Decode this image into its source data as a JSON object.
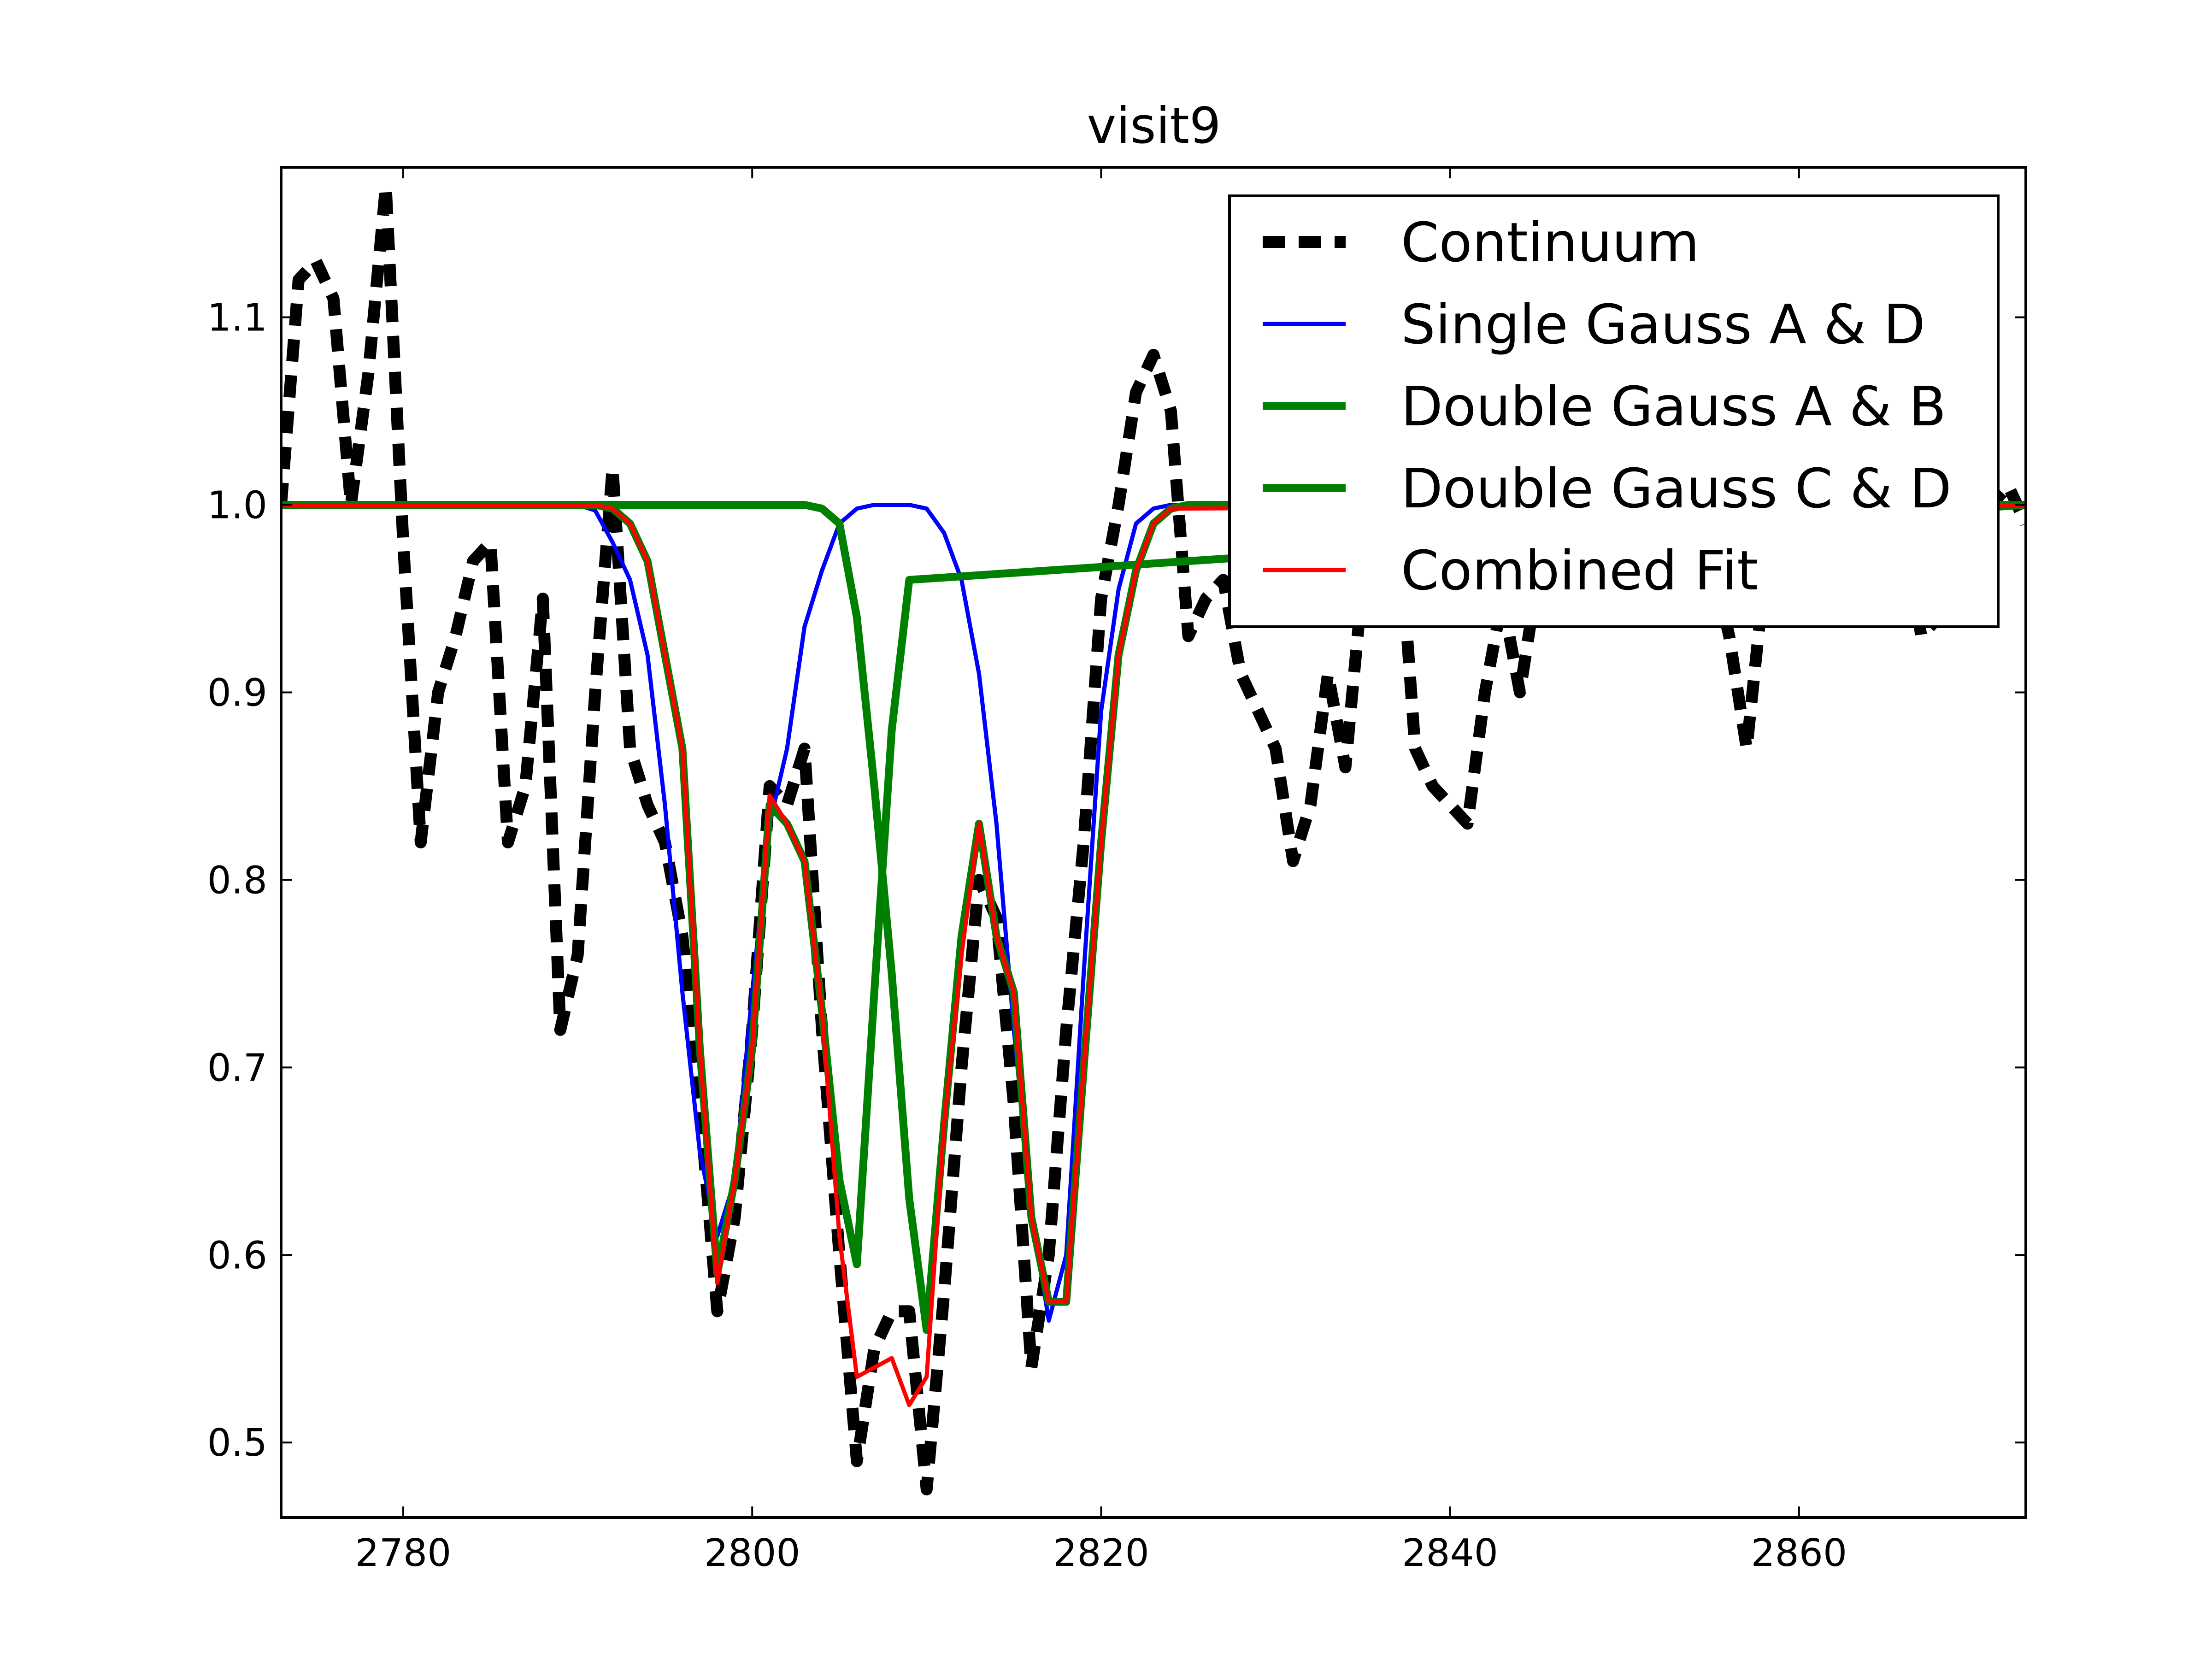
{
  "chart_data": {
    "type": "line",
    "title": "visit9",
    "xlabel": "",
    "ylabel": "",
    "xlim": [
      2773,
      2873
    ],
    "ylim": [
      0.46,
      1.18
    ],
    "xticks": [
      2780,
      2800,
      2820,
      2840,
      2860
    ],
    "yticks": [
      0.5,
      0.6,
      0.7,
      0.8,
      0.9,
      1.0,
      1.1
    ],
    "xtick_labels": [
      "2780",
      "2800",
      "2820",
      "2840",
      "2860"
    ],
    "ytick_labels": [
      "0.5",
      "0.6",
      "0.7",
      "0.8",
      "0.9",
      "1.0",
      "1.1"
    ],
    "grid": false,
    "legend_position": "top-right",
    "series": [
      {
        "name": "Continuum",
        "color": "#000000",
        "style": "dashed",
        "x": [
          2773,
          2774,
          2775,
          2776,
          2777,
          2778,
          2779,
          2780,
          2781,
          2782,
          2783,
          2784,
          2785,
          2786,
          2787,
          2788,
          2789,
          2790,
          2791,
          2792,
          2793,
          2794,
          2795,
          2796,
          2797,
          2798,
          2799,
          2800,
          2801,
          2802,
          2803,
          2804,
          2805,
          2806,
          2807,
          2808,
          2809,
          2810,
          2811,
          2812,
          2813,
          2814,
          2815,
          2816,
          2817,
          2818,
          2819,
          2820,
          2821,
          2822,
          2823,
          2824,
          2825,
          2826,
          2827,
          2828,
          2829,
          2830,
          2831,
          2832,
          2833,
          2834,
          2835,
          2836,
          2837,
          2838,
          2839,
          2840,
          2841,
          2842,
          2843,
          2844,
          2845,
          2846,
          2847,
          2848,
          2849,
          2850,
          2851,
          2852,
          2853,
          2854,
          2855,
          2856,
          2857,
          2858,
          2859,
          2860,
          2861,
          2862,
          2863,
          2864,
          2865,
          2866,
          2867,
          2868,
          2869,
          2870,
          2871,
          2872,
          2873
        ],
        "y": [
          1.0,
          1.12,
          1.13,
          1.11,
          1.0,
          1.07,
          1.17,
          0.98,
          0.82,
          0.9,
          0.93,
          0.97,
          0.98,
          0.82,
          0.85,
          0.95,
          0.72,
          0.76,
          0.9,
          1.02,
          0.87,
          0.84,
          0.82,
          0.77,
          0.68,
          0.57,
          0.62,
          0.72,
          0.85,
          0.84,
          0.87,
          0.72,
          0.6,
          0.49,
          0.55,
          0.57,
          0.57,
          0.475,
          0.58,
          0.7,
          0.8,
          0.78,
          0.68,
          0.54,
          0.6,
          0.72,
          0.82,
          0.95,
          1.0,
          1.06,
          1.08,
          1.05,
          0.93,
          0.95,
          0.96,
          0.91,
          0.89,
          0.87,
          0.81,
          0.84,
          0.91,
          0.86,
          0.96,
          1.0,
          1.0,
          0.87,
          0.85,
          0.84,
          0.83,
          0.9,
          0.95,
          0.9,
          0.96,
          1.0,
          1.0,
          1.0,
          1.0,
          1.0,
          1.0,
          1.0,
          1.0,
          1.0,
          0.97,
          0.93,
          0.87,
          0.96,
          1.0,
          1.0,
          1.0,
          1.0,
          1.0,
          1.0,
          1.0,
          1.0,
          0.93,
          0.94,
          0.96,
          1.0,
          1.0,
          1.01,
          0.99
        ]
      },
      {
        "name": "Single Gauss A & D",
        "color": "#0000ff",
        "style": "solid",
        "x": [
          2773,
          2790,
          2791,
          2792,
          2793,
          2794,
          2795,
          2796,
          2797,
          2798,
          2799,
          2800,
          2801,
          2802,
          2803,
          2804,
          2805,
          2806,
          2807,
          2808,
          2809,
          2810,
          2811,
          2812,
          2813,
          2814,
          2815,
          2816,
          2817,
          2818,
          2819,
          2820,
          2821,
          2822,
          2823,
          2824,
          2873
        ],
        "y": [
          1.0,
          1.0,
          0.997,
          0.98,
          0.96,
          0.92,
          0.84,
          0.74,
          0.655,
          0.61,
          0.64,
          0.74,
          0.83,
          0.87,
          0.935,
          0.965,
          0.99,
          0.998,
          1.0,
          1.0,
          1.0,
          0.998,
          0.985,
          0.96,
          0.91,
          0.83,
          0.72,
          0.625,
          0.565,
          0.6,
          0.75,
          0.89,
          0.955,
          0.99,
          0.998,
          1.0,
          1.0
        ]
      },
      {
        "name": "Double Gauss A & B",
        "color": "#008000",
        "style": "solid",
        "x": [
          2773,
          2790,
          2791,
          2792,
          2793,
          2794,
          2795,
          2796,
          2797,
          2798,
          2799,
          2800,
          2801,
          2802,
          2803,
          2804,
          2805,
          2806,
          2807,
          2808,
          2809,
          2873
        ],
        "y": [
          1.0,
          1.0,
          1.0,
          0.998,
          0.99,
          0.97,
          0.92,
          0.87,
          0.71,
          0.59,
          0.64,
          0.71,
          0.84,
          0.83,
          0.81,
          0.73,
          0.64,
          0.595,
          0.74,
          0.88,
          0.96,
          1.0
        ]
      },
      {
        "name": "Double Gauss C & D",
        "color": "#008000",
        "style": "solid",
        "x": [
          2773,
          2803,
          2804,
          2805,
          2806,
          2807,
          2808,
          2809,
          2810,
          2811,
          2812,
          2813,
          2814,
          2815,
          2816,
          2817,
          2818,
          2819,
          2820,
          2821,
          2822,
          2823,
          2824,
          2825,
          2873
        ],
        "y": [
          1.0,
          1.0,
          0.998,
          0.99,
          0.94,
          0.85,
          0.75,
          0.63,
          0.56,
          0.67,
          0.77,
          0.83,
          0.77,
          0.74,
          0.62,
          0.575,
          0.575,
          0.7,
          0.82,
          0.92,
          0.965,
          0.99,
          0.998,
          1.0,
          1.0
        ]
      },
      {
        "name": "Combined Fit",
        "color": "#ff0000",
        "style": "solid",
        "x": [
          2773,
          2790,
          2791,
          2792,
          2793,
          2794,
          2795,
          2796,
          2797,
          2798,
          2799,
          2800,
          2801,
          2802,
          2803,
          2804,
          2805,
          2806,
          2807,
          2808,
          2809,
          2810,
          2811,
          2812,
          2813,
          2814,
          2815,
          2816,
          2817,
          2818,
          2819,
          2820,
          2821,
          2822,
          2823,
          2824,
          2873
        ],
        "y": [
          1.0,
          1.0,
          1.0,
          0.998,
          0.99,
          0.97,
          0.92,
          0.87,
          0.71,
          0.585,
          0.64,
          0.71,
          0.845,
          0.83,
          0.81,
          0.73,
          0.61,
          0.535,
          0.54,
          0.545,
          0.52,
          0.535,
          0.67,
          0.76,
          0.83,
          0.77,
          0.74,
          0.62,
          0.575,
          0.575,
          0.7,
          0.82,
          0.92,
          0.965,
          0.99,
          0.998,
          1.0
        ]
      }
    ]
  }
}
